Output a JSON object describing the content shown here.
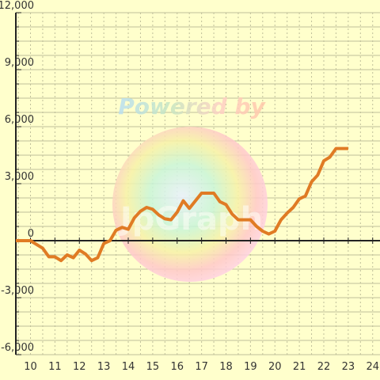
{
  "watermark": {
    "text": "Powered by",
    "logo_text": "JpGraph"
  },
  "colors": {
    "background": "#ffffcc",
    "grid": "#bfbf9a",
    "line": "#e07b24",
    "axis": "#222222"
  },
  "chart_data": {
    "type": "line",
    "title": "",
    "xlabel": "",
    "ylabel": "",
    "xlim": [
      9.4,
      24.3
    ],
    "ylim": [
      -6000,
      12000
    ],
    "x_ticks": [
      10,
      11,
      12,
      13,
      14,
      15,
      16,
      17,
      18,
      19,
      20,
      21,
      22,
      23,
      24
    ],
    "x_tick_labels": [
      "10",
      "11",
      "12",
      "13",
      "14",
      "15",
      "16",
      "17",
      "18",
      "19",
      "20",
      "21",
      "22",
      "23",
      "24"
    ],
    "y_ticks": [
      -6000,
      -3000,
      0,
      3000,
      6000,
      9000,
      12000
    ],
    "y_tick_labels": [
      "-6,000",
      "-3,000",
      "0",
      "3,000",
      "6,000",
      "9,000",
      "12,000"
    ],
    "grid": true,
    "series": [
      {
        "x": [
          9.4,
          9.5,
          9.75,
          10.0,
          10.25,
          10.5,
          10.75,
          11.0,
          11.25,
          11.5,
          11.75,
          12.0,
          12.25,
          12.5,
          12.75,
          13.0,
          13.25,
          13.5,
          13.75,
          14.0,
          14.25,
          14.5,
          14.75,
          15.0,
          15.25,
          15.5,
          15.75,
          16.0,
          16.25,
          16.5,
          16.75,
          17.0,
          17.25,
          17.5,
          17.75,
          18.0,
          18.25,
          18.5,
          18.75,
          19.0,
          19.25,
          19.5,
          19.75,
          20.0,
          20.25,
          20.5,
          20.75,
          21.0,
          21.25,
          21.5,
          21.75,
          22.0,
          22.25,
          22.5,
          22.75,
          23.0
        ],
        "values": [
          0,
          0,
          0,
          0,
          -200,
          -400,
          -850,
          -850,
          -1050,
          -750,
          -900,
          -500,
          -700,
          -1050,
          -900,
          -150,
          0,
          550,
          700,
          600,
          1200,
          1550,
          1750,
          1650,
          1350,
          1150,
          1100,
          1500,
          2100,
          1700,
          2100,
          2500,
          2500,
          2500,
          2050,
          1900,
          1400,
          1100,
          1100,
          1100,
          750,
          500,
          350,
          500,
          1100,
          1450,
          1750,
          2200,
          2350,
          3100,
          3450,
          4200,
          4400,
          4850,
          4850,
          4850
        ]
      }
    ]
  }
}
